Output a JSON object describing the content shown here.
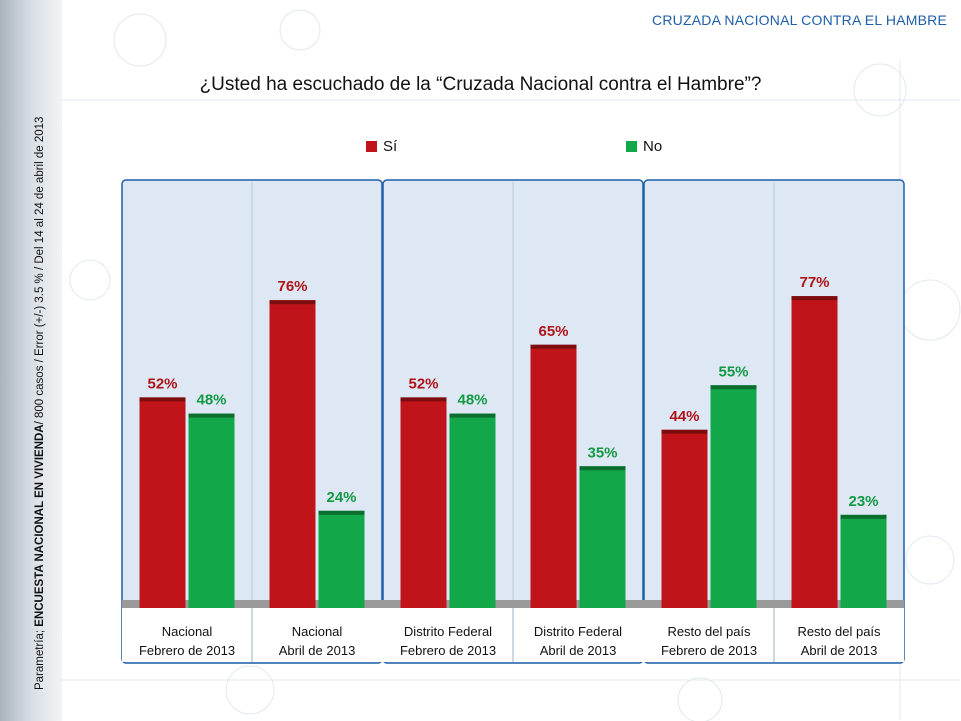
{
  "header": {
    "title": "CRUZADA NACIONAL CONTRA EL HAMBRE"
  },
  "side_note": {
    "prefix": "Parametría;",
    "bold": "ENCUESTA NACIONAL EN VIVIENDA",
    "rest": "/ 800 casos / Error (+/-) 3.5 % / Del 14 al 24  de abril de 2013"
  },
  "colors": {
    "si": "#c0141a",
    "no": "#12a84a",
    "accent": "#1f5fa8"
  },
  "chart_data": {
    "type": "bar",
    "title": "¿Usted ha escuchado de la “Cruzada Nacional contra el Hambre”?",
    "ylim": [
      0,
      100
    ],
    "legend": "top",
    "grid": false,
    "categories": [
      [
        "Nacional",
        "Febrero de 2013"
      ],
      [
        "Nacional",
        "Abril de 2013"
      ],
      [
        "Distrito Federal",
        "Febrero de 2013"
      ],
      [
        "Distrito Federal",
        "Abril de 2013"
      ],
      [
        "Resto del país",
        "Febrero de 2013"
      ],
      [
        "Resto del país",
        "Abril de 2013"
      ]
    ],
    "series": [
      {
        "name": "Sí",
        "values": [
          52,
          76,
          52,
          65,
          44,
          77
        ],
        "labels": [
          "52%",
          "76%",
          "52%",
          "65%",
          "44%",
          "77%"
        ]
      },
      {
        "name": "No",
        "values": [
          48,
          24,
          48,
          35,
          55,
          23
        ],
        "labels": [
          "48%",
          "24%",
          "48%",
          "35%",
          "55%",
          "23%"
        ]
      }
    ]
  }
}
